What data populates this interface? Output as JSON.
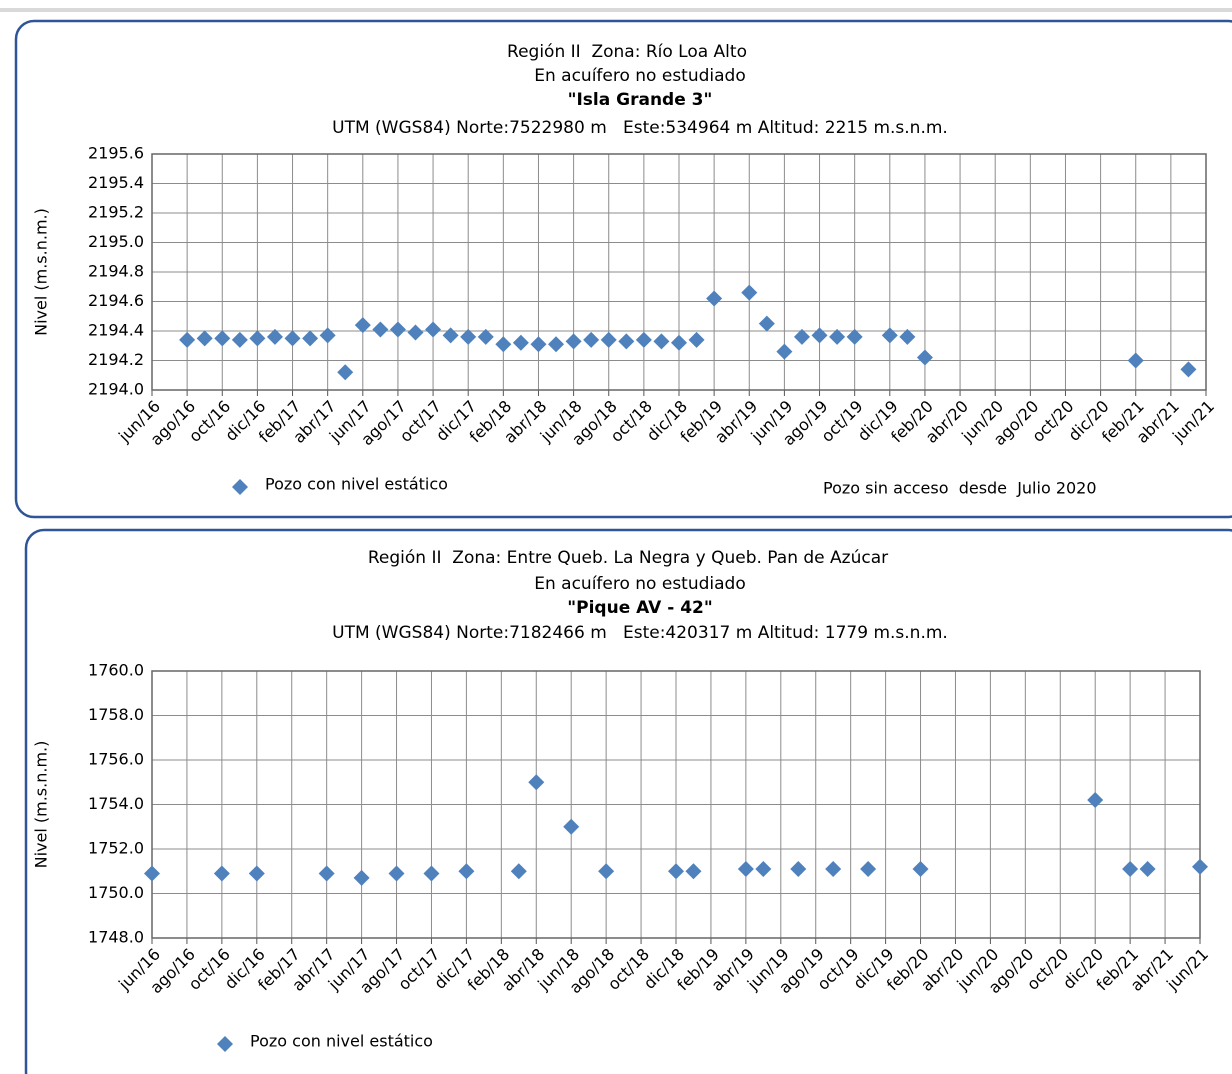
{
  "chart_data": [
    {
      "type": "scatter",
      "region": "Región II  Zona: Río Loa Alto",
      "aquifer": "En acuífero no estudiado",
      "title": "\"Isla Grande 3\"",
      "subtitle": "UTM (WGS84) Norte:7522980 m   Este:534964 m Altitud: 2215 m.s.n.m.",
      "y_label": "Nivel (m.s.n.m.)",
      "annotation": "Pozo sin acceso  desde  Julio 2020",
      "grid": true,
      "categories": [
        "jun/16",
        null,
        "ago/16",
        null,
        "oct/16",
        null,
        "dic/16",
        null,
        "feb/17",
        null,
        "abr/17",
        null,
        "jun/17",
        null,
        "ago/17",
        null,
        "oct/17",
        null,
        "dic/17",
        null,
        "feb/18",
        null,
        "abr/18",
        null,
        "jun/18",
        null,
        "ago/18",
        null,
        "oct/18",
        null,
        "dic/18",
        null,
        "feb/19",
        null,
        "abr/19",
        null,
        "jun/19",
        null,
        "ago/19",
        null,
        "oct/19",
        null,
        "dic/19",
        null,
        "feb/20",
        null,
        "abr/20",
        null,
        "jun/20",
        null,
        "ago/20",
        null,
        "oct/20",
        null,
        "dic/20",
        null,
        "feb/21",
        null,
        "abr/21",
        null,
        "jun/21"
      ],
      "series": [
        {
          "name": "Pozo con nivel estático",
          "color": "#4f81bd",
          "values": [
            null,
            null,
            2194.34,
            2194.35,
            2194.35,
            2194.34,
            2194.35,
            2194.36,
            2194.35,
            2194.35,
            2194.37,
            2194.12,
            2194.44,
            2194.41,
            2194.41,
            2194.39,
            2194.41,
            2194.37,
            2194.36,
            2194.36,
            2194.31,
            2194.32,
            2194.31,
            2194.31,
            2194.33,
            2194.34,
            2194.34,
            2194.33,
            2194.34,
            2194.33,
            2194.32,
            2194.34,
            2194.62,
            null,
            2194.66,
            2194.45,
            2194.26,
            2194.36,
            2194.37,
            2194.36,
            2194.36,
            null,
            2194.37,
            2194.36,
            2194.22,
            null,
            null,
            null,
            null,
            null,
            null,
            null,
            null,
            null,
            null,
            null,
            2194.2,
            null,
            null,
            2194.14,
            null
          ]
        }
      ],
      "ylim": [
        2194.0,
        2195.6
      ],
      "yticks": [
        {
          "value": 2194.0,
          "label": "2194.0"
        },
        2194.2,
        2194.4,
        2194.6,
        2194.8,
        {
          "value": 2195.0,
          "label": "2195.0"
        },
        2195.2,
        2195.4,
        2195.6
      ]
    },
    {
      "type": "scatter",
      "region": "Región II  Zona: Entre Queb. La Negra y Queb. Pan de Azúcar",
      "aquifer": "En acuífero no estudiado",
      "title": "\"Pique AV - 42\"",
      "subtitle": "UTM (WGS84) Norte:7182466 m   Este:420317 m Altitud: 1779 m.s.n.m.",
      "y_label": "Nivel (m.s.n.m.)",
      "grid": true,
      "categories": [
        "jun/16",
        null,
        "ago/16",
        null,
        "oct/16",
        null,
        "dic/16",
        null,
        "feb/17",
        null,
        "abr/17",
        null,
        "jun/17",
        null,
        "ago/17",
        null,
        "oct/17",
        null,
        "dic/17",
        null,
        "feb/18",
        null,
        "abr/18",
        null,
        "jun/18",
        null,
        "ago/18",
        null,
        "oct/18",
        null,
        "dic/18",
        null,
        "feb/19",
        null,
        "abr/19",
        null,
        "jun/19",
        null,
        "ago/19",
        null,
        "oct/19",
        null,
        "dic/19",
        null,
        "feb/20",
        null,
        "abr/20",
        null,
        "jun/20",
        null,
        "ago/20",
        null,
        "oct/20",
        null,
        "dic/20",
        null,
        "feb/21",
        null,
        "abr/21",
        null,
        "jun/21"
      ],
      "series": [
        {
          "name": "Pozo con nivel estático",
          "color": "#4f81bd",
          "values": [
            1750.9,
            null,
            null,
            null,
            1750.9,
            null,
            1750.9,
            null,
            null,
            null,
            1750.9,
            null,
            1750.7,
            null,
            1750.9,
            null,
            1750.9,
            null,
            1751.0,
            null,
            null,
            1751.0,
            1755.0,
            null,
            1753.0,
            null,
            1751.0,
            null,
            null,
            null,
            1751.0,
            1751.0,
            null,
            null,
            1751.1,
            1751.1,
            null,
            1751.1,
            null,
            1751.1,
            null,
            1751.1,
            null,
            null,
            1751.1,
            null,
            null,
            null,
            null,
            null,
            null,
            null,
            null,
            null,
            1754.2,
            null,
            1751.1,
            1751.1,
            null,
            null,
            1751.2
          ]
        }
      ],
      "ylim": [
        1748.0,
        1760.0
      ],
      "yticks": [
        {
          "value": 1748.0,
          "label": "1748.0"
        },
        {
          "value": 1750.0,
          "label": "1750.0"
        },
        {
          "value": 1752.0,
          "label": "1752.0"
        },
        {
          "value": 1754.0,
          "label": "1754.0"
        },
        {
          "value": 1756.0,
          "label": "1756.0"
        },
        {
          "value": 1758.0,
          "label": "1758.0"
        },
        {
          "value": 1760.0,
          "label": "1760.0"
        }
      ]
    }
  ]
}
